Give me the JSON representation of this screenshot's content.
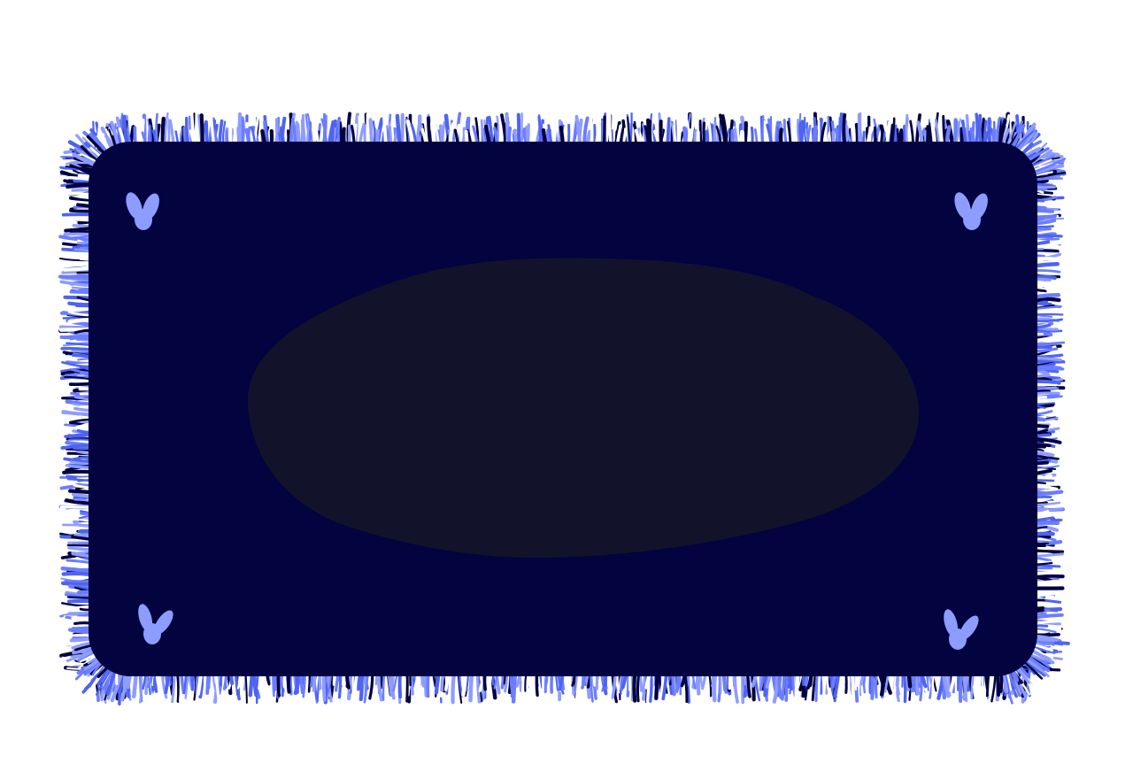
{
  "scene": {
    "subject": "rug",
    "rug": {
      "fill_color": "#02033f",
      "center_spot_color": "#12132b",
      "fringe_colors": [
        "#ffffff",
        "#8f9cff",
        "#4e64f0",
        "#6b7dff",
        "#02033f"
      ],
      "corner_motif_color": "#8d9cff",
      "corner_motif_icon": "bunny-ears-icon"
    }
  }
}
